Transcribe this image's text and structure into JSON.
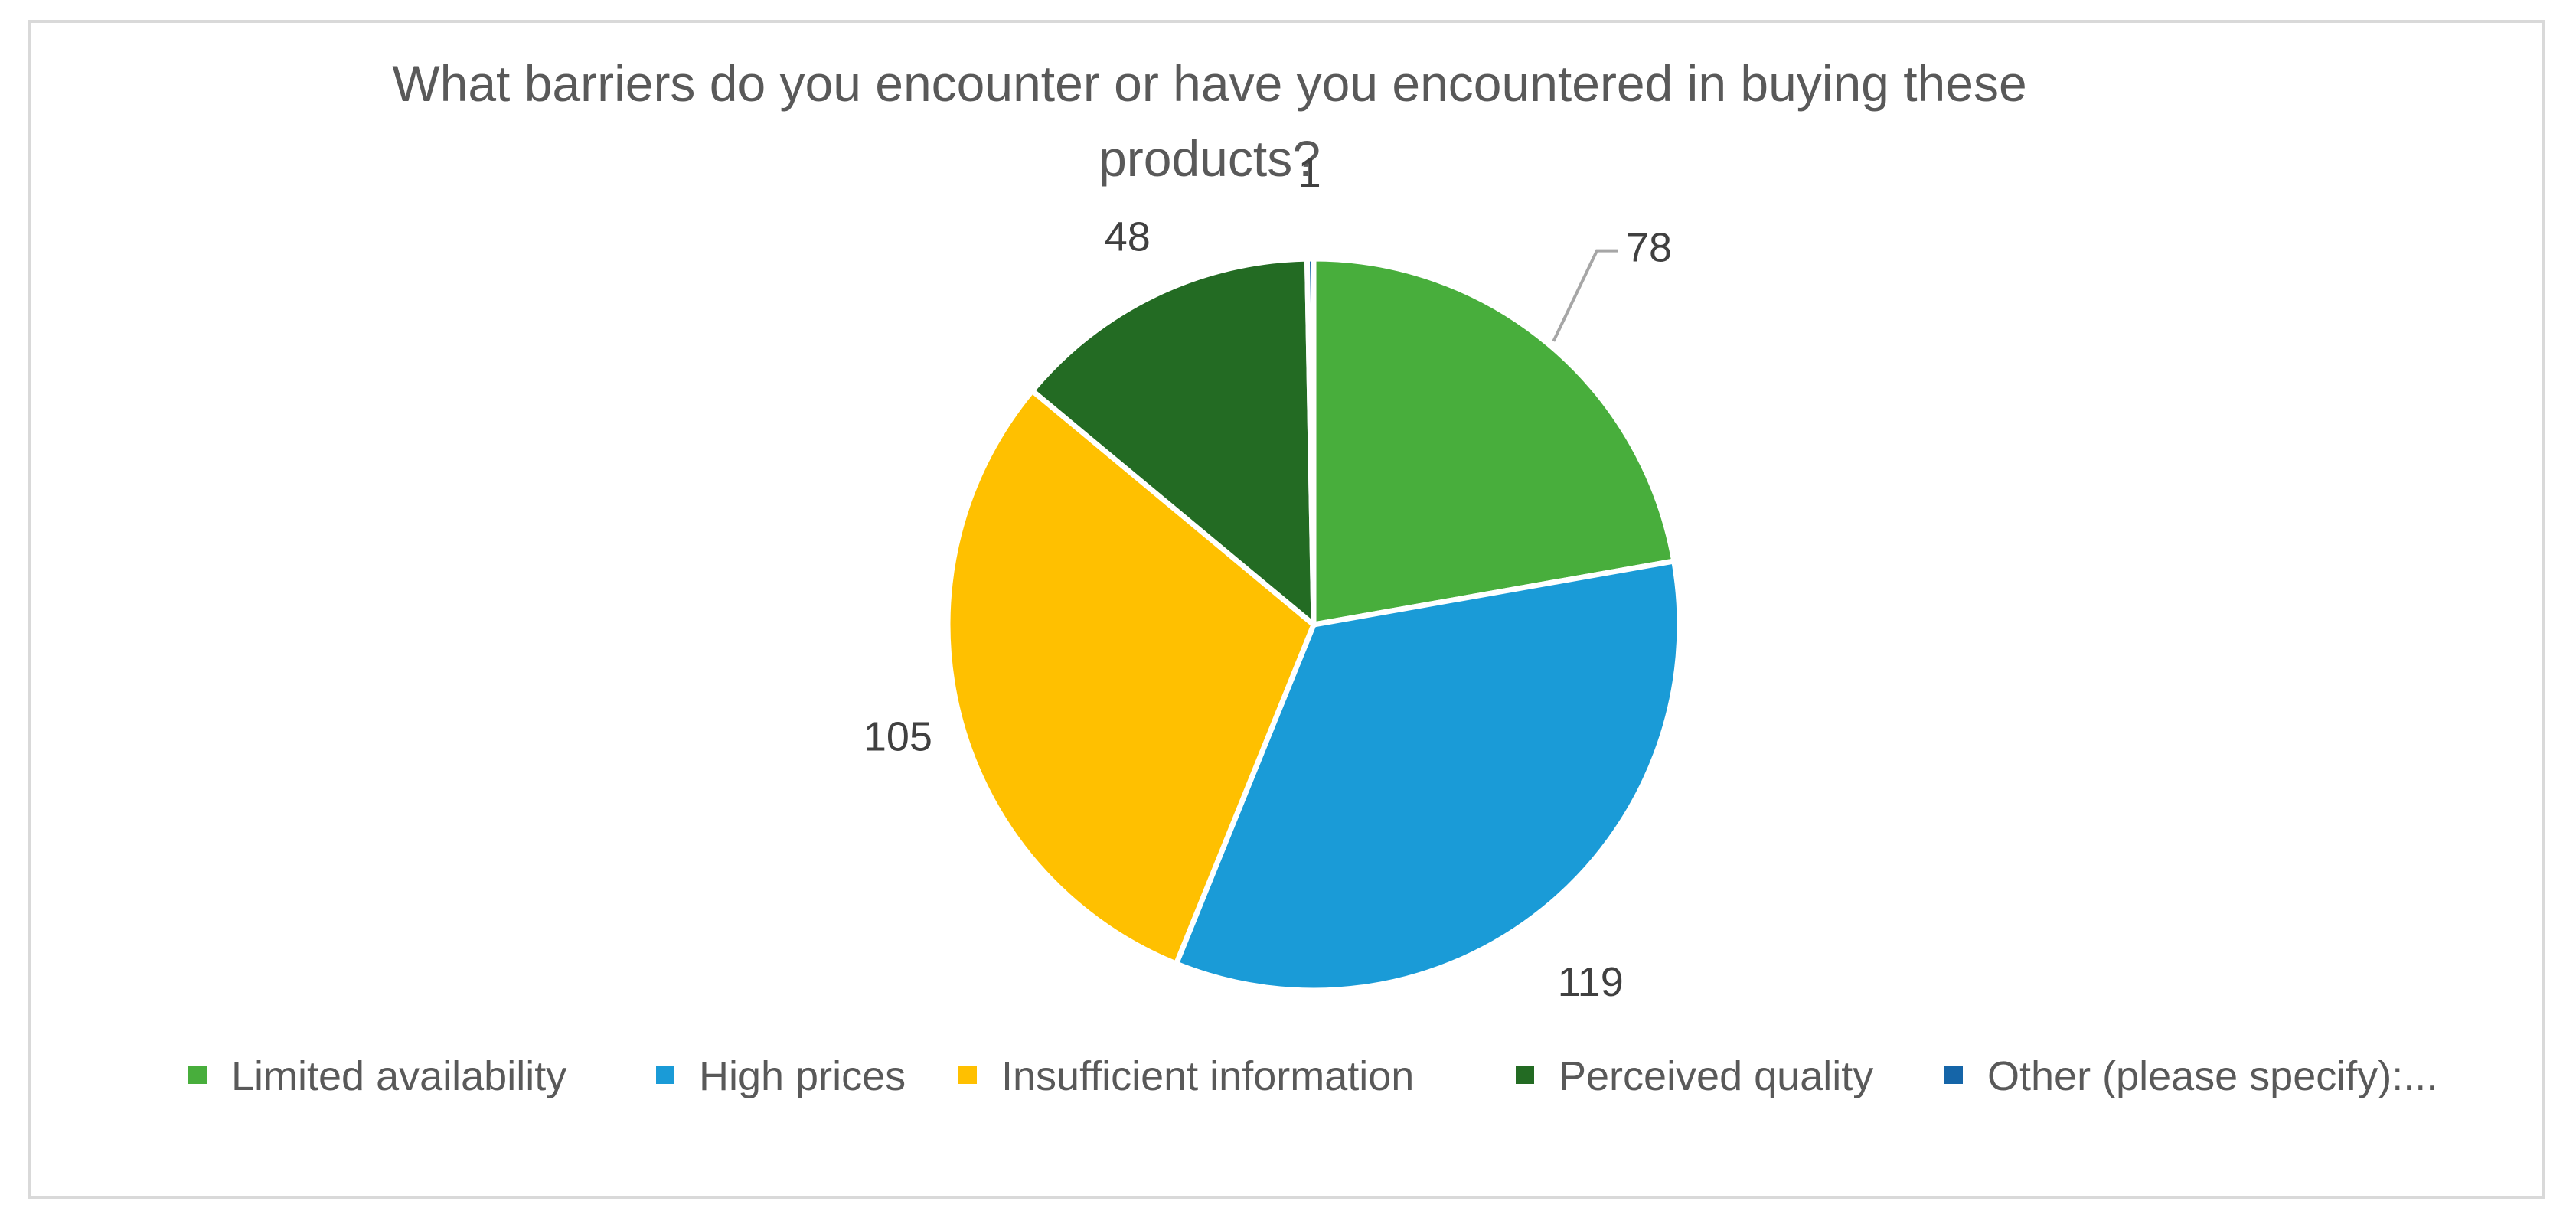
{
  "chart_data": {
    "type": "pie",
    "title_lines": [
      "What barriers do you encounter or have you encountered in buying these",
      "products?"
    ],
    "categories": [
      "Limited availability",
      "High prices",
      "Insufficient information",
      "Perceived quality",
      "Other (please specify):..."
    ],
    "values": [
      78,
      119,
      105,
      48,
      1
    ],
    "colors": [
      "#48AE3C",
      "#1A9BD7",
      "#FFC000",
      "#236B23",
      "#1565A8"
    ],
    "data_labels": [
      "78",
      "119",
      "105",
      "48",
      "1"
    ],
    "legend_position": "bottom",
    "start_angle_deg": 0,
    "direction": "clockwise"
  }
}
